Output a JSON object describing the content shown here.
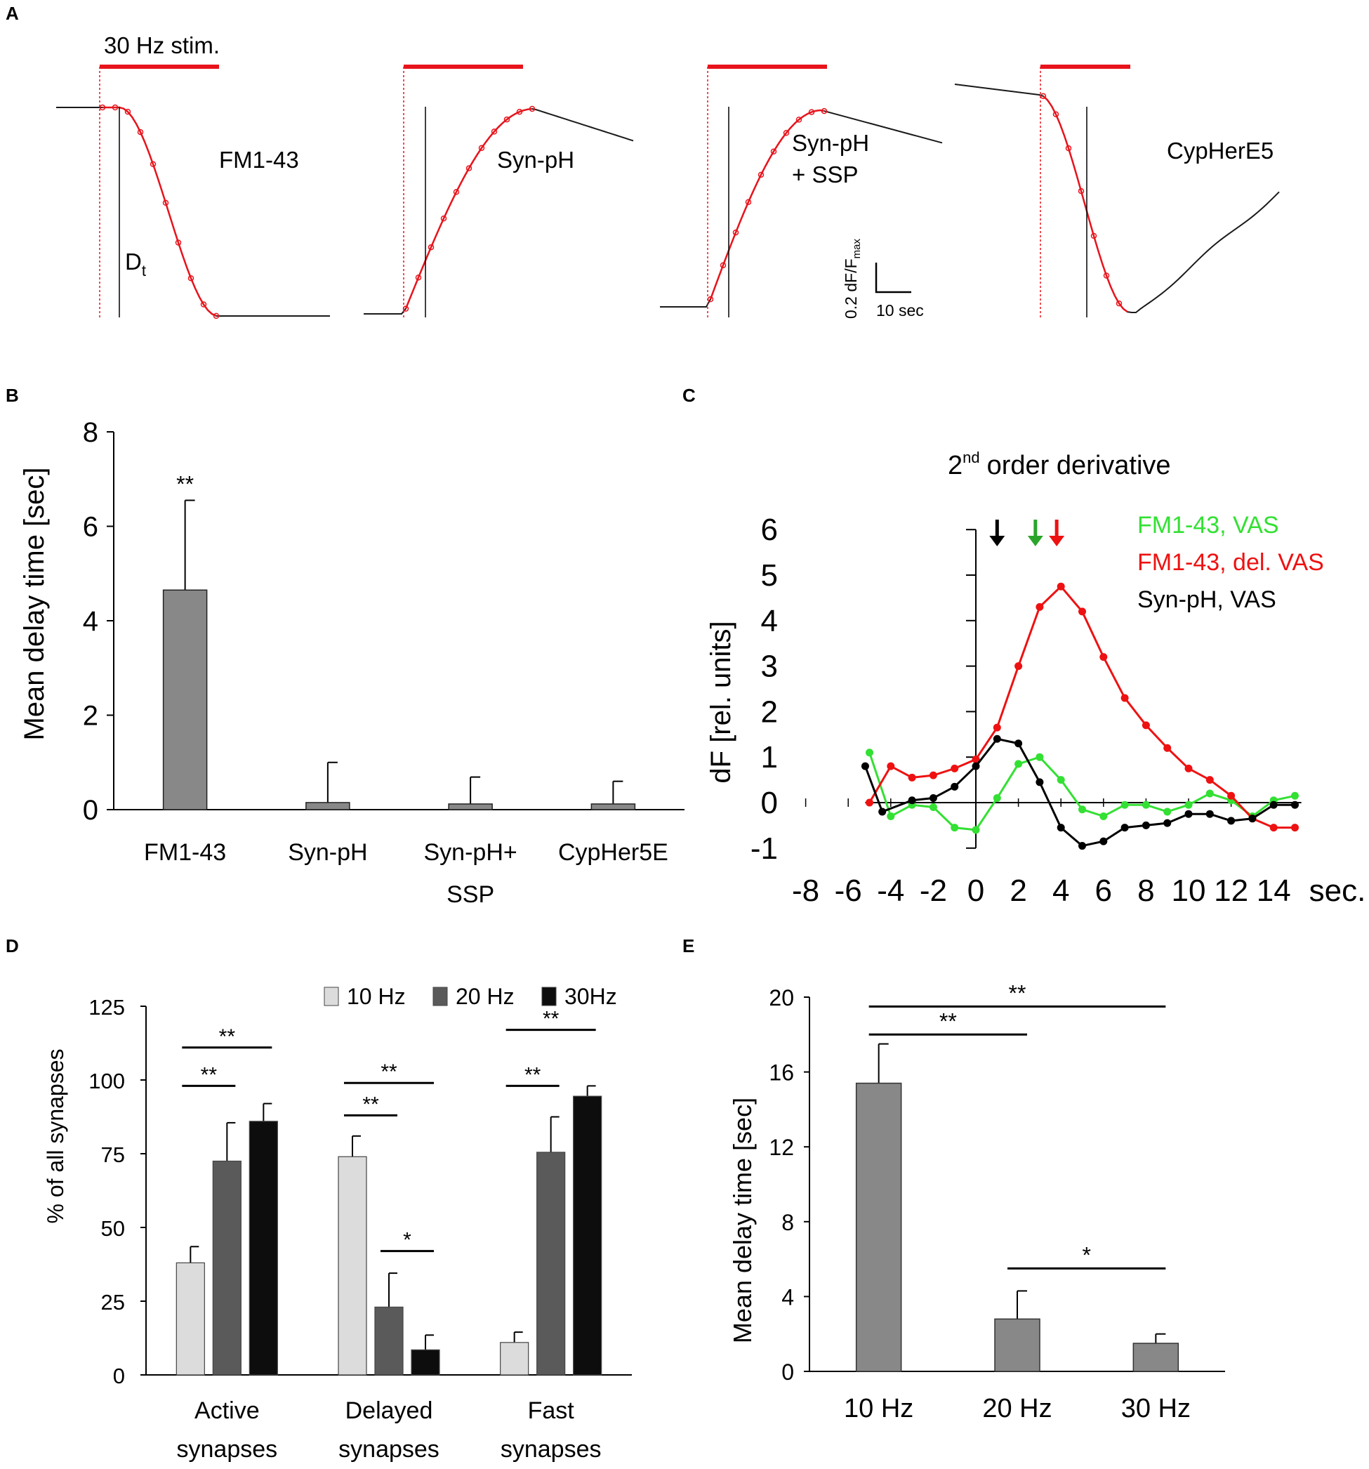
{
  "panel_labels": {
    "a": "A",
    "b": "B",
    "c": "C",
    "d": "D",
    "e": "E"
  },
  "colors": {
    "stim": "#e8141c",
    "trace": "#1a1a1a",
    "bar_mid": "#888888",
    "green": "#33e033",
    "red": "#ee1111",
    "black": "#000000",
    "light": "#dcdcdc",
    "dark": "#5a5a5a",
    "darkest": "#0d0d0d"
  },
  "panel_a": {
    "stim_label": "30 Hz stim.",
    "traces": [
      {
        "label": "FM1-43"
      },
      {
        "label": "Syn-pH"
      },
      {
        "label_line1": "Syn-pH",
        "label_line2": "+ SSP"
      },
      {
        "label": "CypHerE5"
      }
    ],
    "dt_label": "D",
    "dt_sub": "t",
    "scale_y": "0.2 dF/F",
    "scale_y_sub": "max",
    "scale_x": "10 sec"
  },
  "chart_data": [
    {
      "panel": "B",
      "type": "bar",
      "ylabel": "Mean delay time [sec]",
      "ylim": [
        0,
        8
      ],
      "yticks": [
        "0",
        "2",
        "4",
        "6",
        "8"
      ],
      "categories": [
        "FM1-43",
        "Syn-pH",
        "Syn-pH+",
        "CypHer5E"
      ],
      "category_line2": [
        "",
        "",
        "SSP",
        ""
      ],
      "values": [
        4.65,
        0.15,
        0.12,
        0.12
      ],
      "errors": [
        1.9,
        0.85,
        0.57,
        0.48
      ],
      "significance": [
        "**",
        "",
        "",
        ""
      ]
    },
    {
      "panel": "C",
      "type": "line",
      "title": "2",
      "title_sup": "nd",
      "title_rest": "order derivative",
      "ylabel": "dF [rel. units]",
      "xunit": "sec.",
      "xlim": [
        -8,
        14
      ],
      "ylim": [
        -1,
        6
      ],
      "xticks": [
        "-8",
        "-6",
        "-4",
        "-2",
        "0",
        "2",
        "4",
        "6",
        "8",
        "10",
        "12",
        "14"
      ],
      "yticks": [
        "-1",
        "0",
        "1",
        "2",
        "3",
        "4",
        "5",
        "6"
      ],
      "series": [
        {
          "name": "FM1-43, VAS",
          "x": [
            -5,
            -4,
            -3,
            -2,
            -1,
            0,
            1,
            2,
            3,
            4,
            5,
            6,
            7,
            8,
            9,
            10,
            11,
            12,
            13,
            14,
            15
          ],
          "y": [
            1.1,
            -0.3,
            -0.05,
            -0.1,
            -0.55,
            -0.6,
            0.1,
            0.85,
            1.0,
            0.5,
            -0.15,
            -0.3,
            -0.05,
            -0.05,
            -0.2,
            -0.05,
            0.2,
            0.05,
            -0.3,
            0.05,
            0.15
          ]
        },
        {
          "name": "FM1-43, del. VAS",
          "x": [
            -5,
            -4,
            -3,
            -2,
            -1,
            0,
            1,
            2,
            3,
            4,
            5,
            6,
            7,
            8,
            9,
            10,
            11,
            12,
            13,
            14,
            15
          ],
          "y": [
            0.0,
            0.8,
            0.55,
            0.6,
            0.75,
            0.95,
            1.65,
            3.0,
            4.3,
            4.75,
            4.2,
            3.2,
            2.3,
            1.7,
            1.2,
            0.75,
            0.5,
            0.15,
            -0.35,
            -0.55,
            -0.55
          ]
        },
        {
          "name": "Syn-pH, VAS",
          "x": [
            -5.2,
            -4.4,
            -3,
            -2,
            -1,
            0,
            1,
            2,
            3,
            4,
            5,
            6,
            7,
            8,
            9,
            10,
            11,
            12,
            13,
            14,
            15
          ],
          "y": [
            0.8,
            -0.2,
            0.05,
            0.1,
            0.35,
            0.8,
            1.4,
            1.3,
            0.45,
            -0.55,
            -0.95,
            -0.85,
            -0.55,
            -0.5,
            -0.45,
            -0.25,
            -0.25,
            -0.4,
            -0.35,
            -0.05,
            -0.05
          ]
        }
      ],
      "arrows": [
        {
          "x": 1,
          "color": "black"
        },
        {
          "x": 2.8,
          "color": "green"
        },
        {
          "x": 3.8,
          "color": "red"
        }
      ]
    },
    {
      "panel": "D",
      "type": "bar",
      "ylabel": "% of all synapses",
      "ylim": [
        0,
        125
      ],
      "yticks": [
        "0",
        "25",
        "50",
        "75",
        "100",
        "125"
      ],
      "groups": [
        {
          "line1": "Active",
          "line2": "synapses"
        },
        {
          "line1": "Delayed",
          "line2": "synapses"
        },
        {
          "line1": "Fast",
          "line2": "synapses"
        }
      ],
      "series": [
        {
          "name": "10 Hz",
          "values": [
            38,
            74,
            11
          ],
          "errors": [
            5.5,
            7,
            3.5
          ]
        },
        {
          "name": "20 Hz",
          "values": [
            72.5,
            23,
            75.5
          ],
          "errors": [
            13,
            11.5,
            12
          ]
        },
        {
          "name": "30Hz",
          "values": [
            86,
            8.5,
            94.5
          ],
          "errors": [
            6,
            5,
            3.5
          ]
        }
      ],
      "significance": [
        {
          "label": "**"
        },
        {
          "label": "**"
        },
        {
          "label": "**"
        },
        {
          "label": "**"
        },
        {
          "label": "*"
        },
        {
          "label": "**"
        },
        {
          "label": "**"
        }
      ]
    },
    {
      "panel": "E",
      "type": "bar",
      "ylabel": "Mean delay time [sec]",
      "ylim": [
        0,
        20
      ],
      "yticks": [
        "0",
        "4",
        "8",
        "12",
        "16",
        "20"
      ],
      "categories": [
        "10 Hz",
        "20 Hz",
        "30 Hz"
      ],
      "values": [
        15.4,
        2.8,
        1.5
      ],
      "errors": [
        2.1,
        1.5,
        0.5
      ],
      "significance": [
        {
          "label": "**"
        },
        {
          "label": "**"
        },
        {
          "label": "*"
        }
      ]
    }
  ]
}
